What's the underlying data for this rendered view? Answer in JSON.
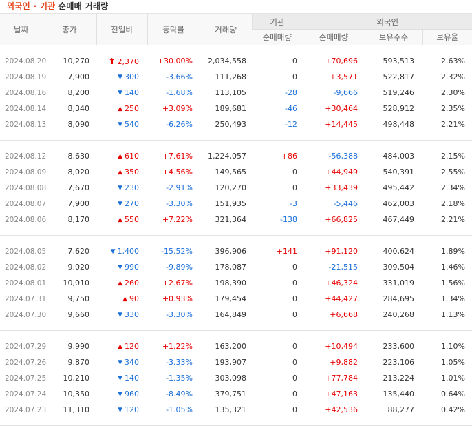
{
  "title": {
    "accent": "외국인 · 기관",
    "rest": "순매매 거래량"
  },
  "colors": {
    "accent": "#e8461a",
    "up": "#e60000",
    "down": "#1a6fd9"
  },
  "header": {
    "date": "날짜",
    "close": "종가",
    "diff": "전일비",
    "rate": "등락률",
    "volume": "거래량",
    "institution_group": "기관",
    "foreign_group": "외국인",
    "inst_net": "순매매량",
    "foreign_net": "순매매량",
    "foreign_holding": "보유주수",
    "foreign_ratio": "보유율"
  },
  "rows": [
    {
      "date": "2024.08.20",
      "close": "10,270",
      "dir": "limit-up",
      "arrow": "🠕",
      "diff": "2,370",
      "rate": "+30.00%",
      "volume": "2,034,558",
      "inst": "0",
      "inst_dir": "neutral",
      "fnet": "+70,696",
      "fnet_dir": "up",
      "fhold": "593,513",
      "fratio": "2.63%"
    },
    {
      "date": "2024.08.19",
      "close": "7,900",
      "dir": "down",
      "arrow": "▼",
      "diff": "300",
      "rate": "-3.66%",
      "volume": "111,268",
      "inst": "0",
      "inst_dir": "neutral",
      "fnet": "+3,571",
      "fnet_dir": "up",
      "fhold": "522,817",
      "fratio": "2.32%"
    },
    {
      "date": "2024.08.16",
      "close": "8,200",
      "dir": "down",
      "arrow": "▼",
      "diff": "140",
      "rate": "-1.68%",
      "volume": "113,105",
      "inst": "-28",
      "inst_dir": "down",
      "fnet": "-9,666",
      "fnet_dir": "down",
      "fhold": "519,246",
      "fratio": "2.30%"
    },
    {
      "date": "2024.08.14",
      "close": "8,340",
      "dir": "up",
      "arrow": "▲",
      "diff": "250",
      "rate": "+3.09%",
      "volume": "189,681",
      "inst": "-46",
      "inst_dir": "down",
      "fnet": "+30,464",
      "fnet_dir": "up",
      "fhold": "528,912",
      "fratio": "2.35%"
    },
    {
      "date": "2024.08.13",
      "close": "8,090",
      "dir": "down",
      "arrow": "▼",
      "diff": "540",
      "rate": "-6.26%",
      "volume": "250,493",
      "inst": "-12",
      "inst_dir": "down",
      "fnet": "+14,445",
      "fnet_dir": "up",
      "fhold": "498,448",
      "fratio": "2.21%"
    },
    {
      "date": "2024.08.12",
      "close": "8,630",
      "dir": "up",
      "arrow": "▲",
      "diff": "610",
      "rate": "+7.61%",
      "volume": "1,224,057",
      "inst": "+86",
      "inst_dir": "up",
      "fnet": "-56,388",
      "fnet_dir": "down",
      "fhold": "484,003",
      "fratio": "2.15%"
    },
    {
      "date": "2024.08.09",
      "close": "8,020",
      "dir": "up",
      "arrow": "▲",
      "diff": "350",
      "rate": "+4.56%",
      "volume": "149,565",
      "inst": "0",
      "inst_dir": "neutral",
      "fnet": "+44,949",
      "fnet_dir": "up",
      "fhold": "540,391",
      "fratio": "2.55%"
    },
    {
      "date": "2024.08.08",
      "close": "7,670",
      "dir": "down",
      "arrow": "▼",
      "diff": "230",
      "rate": "-2.91%",
      "volume": "120,270",
      "inst": "0",
      "inst_dir": "neutral",
      "fnet": "+33,439",
      "fnet_dir": "up",
      "fhold": "495,442",
      "fratio": "2.34%"
    },
    {
      "date": "2024.08.07",
      "close": "7,900",
      "dir": "down",
      "arrow": "▼",
      "diff": "270",
      "rate": "-3.30%",
      "volume": "151,935",
      "inst": "-3",
      "inst_dir": "down",
      "fnet": "-5,446",
      "fnet_dir": "down",
      "fhold": "462,003",
      "fratio": "2.18%"
    },
    {
      "date": "2024.08.06",
      "close": "8,170",
      "dir": "up",
      "arrow": "▲",
      "diff": "550",
      "rate": "+7.22%",
      "volume": "321,364",
      "inst": "-138",
      "inst_dir": "down",
      "fnet": "+66,825",
      "fnet_dir": "up",
      "fhold": "467,449",
      "fratio": "2.21%"
    },
    {
      "date": "2024.08.05",
      "close": "7,620",
      "dir": "down",
      "arrow": "▼",
      "diff": "1,400",
      "rate": "-15.52%",
      "volume": "396,906",
      "inst": "+141",
      "inst_dir": "up",
      "fnet": "+91,120",
      "fnet_dir": "up",
      "fhold": "400,624",
      "fratio": "1.89%"
    },
    {
      "date": "2024.08.02",
      "close": "9,020",
      "dir": "down",
      "arrow": "▼",
      "diff": "990",
      "rate": "-9.89%",
      "volume": "178,087",
      "inst": "0",
      "inst_dir": "neutral",
      "fnet": "-21,515",
      "fnet_dir": "down",
      "fhold": "309,504",
      "fratio": "1.46%"
    },
    {
      "date": "2024.08.01",
      "close": "10,010",
      "dir": "up",
      "arrow": "▲",
      "diff": "260",
      "rate": "+2.67%",
      "volume": "198,390",
      "inst": "0",
      "inst_dir": "neutral",
      "fnet": "+46,324",
      "fnet_dir": "up",
      "fhold": "331,019",
      "fratio": "1.56%"
    },
    {
      "date": "2024.07.31",
      "close": "9,750",
      "dir": "up",
      "arrow": "▲",
      "diff": "90",
      "rate": "+0.93%",
      "volume": "179,454",
      "inst": "0",
      "inst_dir": "neutral",
      "fnet": "+44,427",
      "fnet_dir": "up",
      "fhold": "284,695",
      "fratio": "1.34%"
    },
    {
      "date": "2024.07.30",
      "close": "9,660",
      "dir": "down",
      "arrow": "▼",
      "diff": "330",
      "rate": "-3.30%",
      "volume": "164,849",
      "inst": "0",
      "inst_dir": "neutral",
      "fnet": "+6,668",
      "fnet_dir": "up",
      "fhold": "240,268",
      "fratio": "1.13%"
    },
    {
      "date": "2024.07.29",
      "close": "9,990",
      "dir": "up",
      "arrow": "▲",
      "diff": "120",
      "rate": "+1.22%",
      "volume": "163,200",
      "inst": "0",
      "inst_dir": "neutral",
      "fnet": "+10,494",
      "fnet_dir": "up",
      "fhold": "233,600",
      "fratio": "1.10%"
    },
    {
      "date": "2024.07.26",
      "close": "9,870",
      "dir": "down",
      "arrow": "▼",
      "diff": "340",
      "rate": "-3.33%",
      "volume": "193,907",
      "inst": "0",
      "inst_dir": "neutral",
      "fnet": "+9,882",
      "fnet_dir": "up",
      "fhold": "223,106",
      "fratio": "1.05%"
    },
    {
      "date": "2024.07.25",
      "close": "10,210",
      "dir": "down",
      "arrow": "▼",
      "diff": "140",
      "rate": "-1.35%",
      "volume": "303,098",
      "inst": "0",
      "inst_dir": "neutral",
      "fnet": "+77,784",
      "fnet_dir": "up",
      "fhold": "213,224",
      "fratio": "1.01%"
    },
    {
      "date": "2024.07.24",
      "close": "10,350",
      "dir": "down",
      "arrow": "▼",
      "diff": "960",
      "rate": "-8.49%",
      "volume": "379,751",
      "inst": "0",
      "inst_dir": "neutral",
      "fnet": "+47,163",
      "fnet_dir": "up",
      "fhold": "135,440",
      "fratio": "0.64%"
    },
    {
      "date": "2024.07.23",
      "close": "11,310",
      "dir": "down",
      "arrow": "▼",
      "diff": "120",
      "rate": "-1.05%",
      "volume": "135,321",
      "inst": "0",
      "inst_dir": "neutral",
      "fnet": "+42,536",
      "fnet_dir": "up",
      "fhold": "88,277",
      "fratio": "0.42%"
    }
  ]
}
